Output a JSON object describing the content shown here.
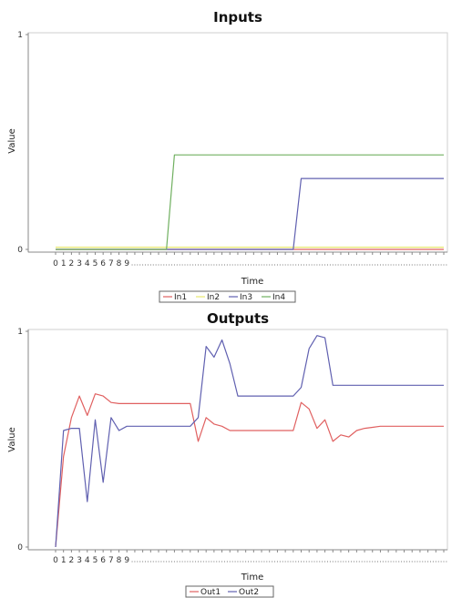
{
  "chart_data": [
    {
      "type": "line",
      "title": "Inputs",
      "xlabel": "Time",
      "ylabel": "Value",
      "ylim": [
        0,
        1
      ],
      "y_ticks": [
        "0",
        "1"
      ],
      "x_tick_labels": [
        "0",
        "1",
        "2",
        "3",
        "4",
        "5",
        "6",
        "7",
        "8",
        "9"
      ],
      "x_total_ticks": 50,
      "grid": false,
      "legend_position": "bottom",
      "x": [
        0,
        1,
        2,
        3,
        4,
        5,
        6,
        7,
        8,
        9,
        10,
        11,
        12,
        13,
        14,
        15,
        16,
        17,
        18,
        19,
        20,
        21,
        22,
        23,
        24,
        25,
        26,
        27,
        28,
        29,
        30,
        31,
        32,
        33,
        34,
        35,
        36,
        37,
        38,
        39,
        40,
        41,
        42,
        43,
        44,
        45,
        46,
        47,
        48,
        49
      ],
      "series": [
        {
          "name": "In1",
          "color": "#e06060",
          "values": [
            0,
            0,
            0,
            0,
            0,
            0,
            0,
            0,
            0,
            0,
            0,
            0,
            0,
            0,
            0,
            0,
            0,
            0,
            0,
            0,
            0,
            0,
            0,
            0,
            0,
            0,
            0,
            0,
            0,
            0,
            0,
            0,
            0,
            0,
            0,
            0,
            0,
            0,
            0,
            0,
            0,
            0,
            0,
            0,
            0,
            0,
            0,
            0,
            0,
            0
          ]
        },
        {
          "name": "In2",
          "color": "#e8e870",
          "values": [
            0.01,
            0.01,
            0.01,
            0.01,
            0.01,
            0.01,
            0.01,
            0.01,
            0.01,
            0.01,
            0.01,
            0.01,
            0.01,
            0.01,
            0.01,
            0.01,
            0.01,
            0.01,
            0.01,
            0.01,
            0.01,
            0.01,
            0.01,
            0.01,
            0.01,
            0.01,
            0.01,
            0.01,
            0.01,
            0.01,
            0.01,
            0.01,
            0.01,
            0.01,
            0.01,
            0.01,
            0.01,
            0.01,
            0.01,
            0.01,
            0.01,
            0.01,
            0.01,
            0.01,
            0.01,
            0.01,
            0.01,
            0.01,
            0.01,
            0.01
          ]
        },
        {
          "name": "In3",
          "color": "#6060b0",
          "values": [
            0,
            0,
            0,
            0,
            0,
            0,
            0,
            0,
            0,
            0,
            0,
            0,
            0,
            0,
            0,
            0,
            0,
            0,
            0,
            0,
            0,
            0,
            0,
            0,
            0,
            0,
            0,
            0,
            0,
            0,
            0,
            0.33,
            0.33,
            0.33,
            0.33,
            0.33,
            0.33,
            0.33,
            0.33,
            0.33,
            0.33,
            0.33,
            0.33,
            0.33,
            0.33,
            0.33,
            0.33,
            0.33,
            0.33,
            0.33
          ]
        },
        {
          "name": "In4",
          "color": "#70b060",
          "values": [
            0,
            0,
            0,
            0,
            0,
            0,
            0,
            0,
            0,
            0,
            0,
            0,
            0,
            0,
            0,
            0.44,
            0.44,
            0.44,
            0.44,
            0.44,
            0.44,
            0.44,
            0.44,
            0.44,
            0.44,
            0.44,
            0.44,
            0.44,
            0.44,
            0.44,
            0.44,
            0.44,
            0.44,
            0.44,
            0.44,
            0.44,
            0.44,
            0.44,
            0.44,
            0.44,
            0.44,
            0.44,
            0.44,
            0.44,
            0.44,
            0.44,
            0.44,
            0.44,
            0.44,
            0.44
          ]
        }
      ]
    },
    {
      "type": "line",
      "title": "Outputs",
      "xlabel": "Time",
      "ylabel": "Value",
      "ylim": [
        0,
        1
      ],
      "y_ticks": [
        "0",
        "1"
      ],
      "x_tick_labels": [
        "0",
        "1",
        "2",
        "3",
        "4",
        "5",
        "6",
        "7",
        "8",
        "9"
      ],
      "x_total_ticks": 50,
      "grid": false,
      "legend_position": "bottom",
      "x": [
        0,
        1,
        2,
        3,
        4,
        5,
        6,
        7,
        8,
        9,
        10,
        11,
        12,
        13,
        14,
        15,
        16,
        17,
        18,
        19,
        20,
        21,
        22,
        23,
        24,
        25,
        26,
        27,
        28,
        29,
        30,
        31,
        32,
        33,
        34,
        35,
        36,
        37,
        38,
        39,
        40,
        41,
        42,
        43,
        44,
        45,
        46,
        47,
        48,
        49
      ],
      "series": [
        {
          "name": "Out1",
          "color": "#e06060",
          "values": [
            0,
            0.42,
            0.6,
            0.7,
            0.61,
            0.71,
            0.7,
            0.67,
            0.665,
            0.665,
            0.665,
            0.665,
            0.665,
            0.665,
            0.665,
            0.665,
            0.665,
            0.665,
            0.49,
            0.6,
            0.57,
            0.56,
            0.54,
            0.54,
            0.54,
            0.54,
            0.54,
            0.54,
            0.54,
            0.54,
            0.54,
            0.67,
            0.64,
            0.55,
            0.59,
            0.49,
            0.52,
            0.51,
            0.54,
            0.55,
            0.555,
            0.56,
            0.56,
            0.56,
            0.56,
            0.56,
            0.56,
            0.56,
            0.56,
            0.56
          ]
        },
        {
          "name": "Out2",
          "color": "#6060b0",
          "values": [
            0,
            0.54,
            0.55,
            0.55,
            0.21,
            0.59,
            0.3,
            0.6,
            0.54,
            0.56,
            0.56,
            0.56,
            0.56,
            0.56,
            0.56,
            0.56,
            0.56,
            0.56,
            0.6,
            0.93,
            0.88,
            0.96,
            0.85,
            0.7,
            0.7,
            0.7,
            0.7,
            0.7,
            0.7,
            0.7,
            0.7,
            0.74,
            0.92,
            0.98,
            0.97,
            0.75,
            0.75,
            0.75,
            0.75,
            0.75,
            0.75,
            0.75,
            0.75,
            0.75,
            0.75,
            0.75,
            0.75,
            0.75,
            0.75,
            0.75
          ]
        }
      ]
    }
  ]
}
